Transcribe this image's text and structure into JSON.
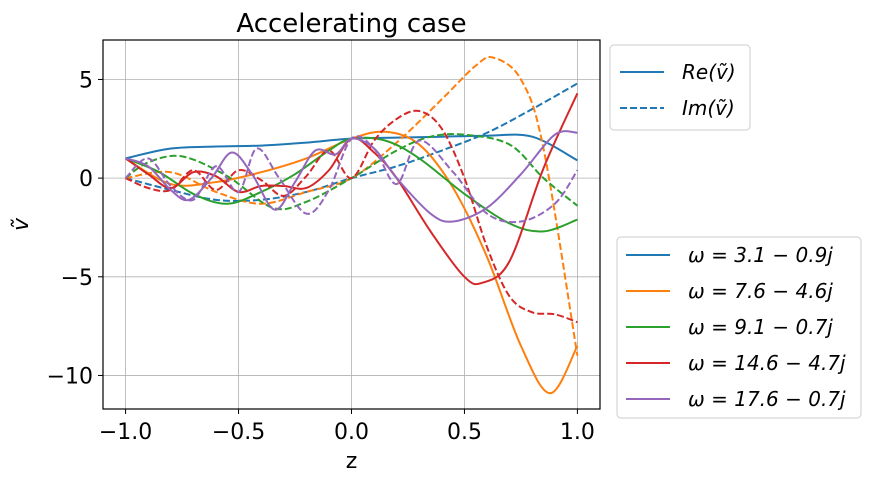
{
  "chart_data": {
    "type": "line",
    "title": "Accelerating case",
    "xlabel": "z",
    "ylabel": "ṽ",
    "xlim": [
      -1.1,
      1.1
    ],
    "ylim": [
      -11.7,
      7.0
    ],
    "xticks": [
      -1.0,
      -0.5,
      0.0,
      0.5,
      1.0
    ],
    "xtick_labels": [
      "−1.0",
      "−0.5",
      "0.0",
      "0.5",
      "1.0"
    ],
    "yticks": [
      5,
      0,
      -5,
      -10
    ],
    "ytick_labels": [
      "5",
      "0",
      "−5",
      "−10"
    ],
    "grid": true,
    "style_legend": {
      "placement": "upper-right-outside",
      "entries": [
        {
          "label": "Re(ṽ)",
          "dash": "solid",
          "color": "#1f77b4"
        },
        {
          "label": "Im(ṽ)",
          "dash": "dashed",
          "color": "#1f77b4"
        }
      ]
    },
    "series_legend": {
      "placement": "lower-right-outside",
      "entries": [
        {
          "label": "ω = 3.1 − 0.9j",
          "color": "#1f77b4"
        },
        {
          "label": "ω = 7.6 − 4.6j",
          "color": "#ff7f0e"
        },
        {
          "label": "ω = 9.1 − 0.7j",
          "color": "#2ca02c"
        },
        {
          "label": "ω = 14.6 − 4.7j",
          "color": "#d62728"
        },
        {
          "label": "ω = 17.6 − 0.7j",
          "color": "#9467bd"
        }
      ]
    },
    "series": [
      {
        "name": "ω = 3.1 − 0.9j",
        "part": "Re",
        "color": "#1f77b4",
        "dash": "solid",
        "x": [
          -1.0,
          -0.8,
          -0.6,
          -0.4,
          -0.2,
          0.0,
          0.2,
          0.4,
          0.6,
          0.8,
          1.0
        ],
        "y": [
          1.0,
          1.5,
          1.6,
          1.65,
          1.8,
          2.0,
          2.05,
          2.1,
          2.15,
          2.1,
          0.9
        ]
      },
      {
        "name": "ω = 3.1 − 0.9j",
        "part": "Im",
        "color": "#1f77b4",
        "dash": "dashed",
        "x": [
          -1.0,
          -0.8,
          -0.6,
          -0.4,
          -0.2,
          0.0,
          0.2,
          0.4,
          0.6,
          0.8,
          1.0
        ],
        "y": [
          0.0,
          -0.6,
          -1.1,
          -1.1,
          -0.7,
          0.0,
          0.6,
          1.4,
          2.3,
          3.5,
          4.8
        ]
      },
      {
        "name": "ω = 7.6 − 4.6j",
        "part": "Re",
        "color": "#ff7f0e",
        "dash": "solid",
        "x": [
          -1.0,
          -0.8,
          -0.6,
          -0.4,
          -0.2,
          0.0,
          0.15,
          0.3,
          0.45,
          0.6,
          0.75,
          0.88,
          1.0
        ],
        "y": [
          1.0,
          -0.3,
          -0.2,
          0.3,
          1.0,
          2.0,
          2.35,
          1.7,
          -0.5,
          -4.0,
          -8.5,
          -10.9,
          -8.5
        ]
      },
      {
        "name": "ω = 7.6 − 4.6j",
        "part": "Im",
        "color": "#ff7f0e",
        "dash": "dashed",
        "x": [
          -1.0,
          -0.8,
          -0.6,
          -0.4,
          -0.2,
          0.0,
          0.2,
          0.4,
          0.55,
          0.63,
          0.75,
          0.85,
          1.0
        ],
        "y": [
          0.0,
          0.3,
          -0.7,
          -1.3,
          -0.7,
          0.0,
          1.8,
          4.0,
          5.7,
          6.1,
          5.0,
          1.5,
          -9.0
        ]
      },
      {
        "name": "ω = 9.1 − 0.7j",
        "part": "Re",
        "color": "#2ca02c",
        "dash": "solid",
        "x": [
          -1.0,
          -0.85,
          -0.7,
          -0.55,
          -0.4,
          -0.25,
          -0.1,
          0.0,
          0.15,
          0.3,
          0.5,
          0.7,
          0.85,
          1.0
        ],
        "y": [
          1.0,
          0.3,
          -0.8,
          -1.3,
          -0.7,
          0.2,
          1.4,
          2.0,
          1.9,
          1.0,
          -0.8,
          -2.3,
          -2.7,
          -2.1
        ]
      },
      {
        "name": "ω = 9.1 − 0.7j",
        "part": "Im",
        "color": "#2ca02c",
        "dash": "dashed",
        "x": [
          -1.0,
          -0.9,
          -0.75,
          -0.55,
          -0.35,
          -0.2,
          0.0,
          0.2,
          0.35,
          0.5,
          0.7,
          0.85,
          1.0
        ],
        "y": [
          0.0,
          0.8,
          1.1,
          0.1,
          -1.5,
          -1.2,
          0.0,
          1.4,
          2.1,
          2.2,
          1.7,
          0.0,
          -1.4
        ]
      },
      {
        "name": "ω = 14.6 − 4.7j",
        "part": "Re",
        "color": "#d62728",
        "dash": "solid",
        "x": [
          -1.0,
          -0.9,
          -0.8,
          -0.7,
          -0.6,
          -0.5,
          -0.4,
          -0.3,
          -0.2,
          -0.1,
          0.0,
          0.1,
          0.2,
          0.35,
          0.5,
          0.58,
          0.7,
          0.85,
          1.0
        ],
        "y": [
          1.0,
          0.2,
          -0.5,
          0.3,
          0.1,
          -0.7,
          -0.4,
          -0.4,
          -0.5,
          0.4,
          2.0,
          1.3,
          0.0,
          -2.7,
          -5.0,
          -5.3,
          -4.2,
          0.5,
          4.3
        ]
      },
      {
        "name": "ω = 14.6 − 4.7j",
        "part": "Im",
        "color": "#d62728",
        "dash": "dashed",
        "x": [
          -1.0,
          -0.9,
          -0.8,
          -0.7,
          -0.6,
          -0.5,
          -0.4,
          -0.3,
          -0.2,
          -0.1,
          0.0,
          0.1,
          0.2,
          0.3,
          0.4,
          0.5,
          0.6,
          0.7,
          0.8,
          0.9,
          1.0
        ],
        "y": [
          0.0,
          -0.5,
          -0.6,
          0.4,
          -0.6,
          0.4,
          -0.1,
          -0.9,
          0.1,
          1.4,
          0.0,
          1.9,
          3.0,
          3.4,
          2.5,
          0.0,
          -3.5,
          -6.0,
          -6.8,
          -6.9,
          -7.3
        ]
      },
      {
        "name": "ω = 17.6 − 0.7j",
        "part": "Re",
        "color": "#9467bd",
        "dash": "solid",
        "x": [
          -1.0,
          -0.9,
          -0.8,
          -0.72,
          -0.62,
          -0.53,
          -0.44,
          -0.34,
          -0.25,
          -0.16,
          -0.07,
          0.0,
          0.1,
          0.2,
          0.35,
          0.45,
          0.6,
          0.75,
          0.9,
          1.0
        ],
        "y": [
          1.0,
          0.6,
          -0.6,
          -1.1,
          0.0,
          1.3,
          0.2,
          -1.6,
          -0.2,
          1.4,
          1.2,
          2.0,
          1.5,
          0.0,
          -1.8,
          -2.2,
          -1.5,
          0.2,
          2.2,
          2.3
        ]
      },
      {
        "name": "ω = 17.6 − 0.7j",
        "part": "Im",
        "color": "#9467bd",
        "dash": "dashed",
        "x": [
          -1.0,
          -0.9,
          -0.8,
          -0.7,
          -0.6,
          -0.5,
          -0.42,
          -0.32,
          -0.2,
          -0.1,
          0.0,
          0.1,
          0.2,
          0.3,
          0.45,
          0.6,
          0.75,
          0.9,
          1.0
        ],
        "y": [
          0.0,
          1.0,
          -0.4,
          -1.1,
          0.6,
          -0.7,
          1.5,
          0.0,
          -1.8,
          -0.6,
          2.0,
          1.5,
          -0.3,
          1.9,
          0.3,
          -1.8,
          -2.2,
          -1.3,
          0.4
        ]
      }
    ]
  }
}
